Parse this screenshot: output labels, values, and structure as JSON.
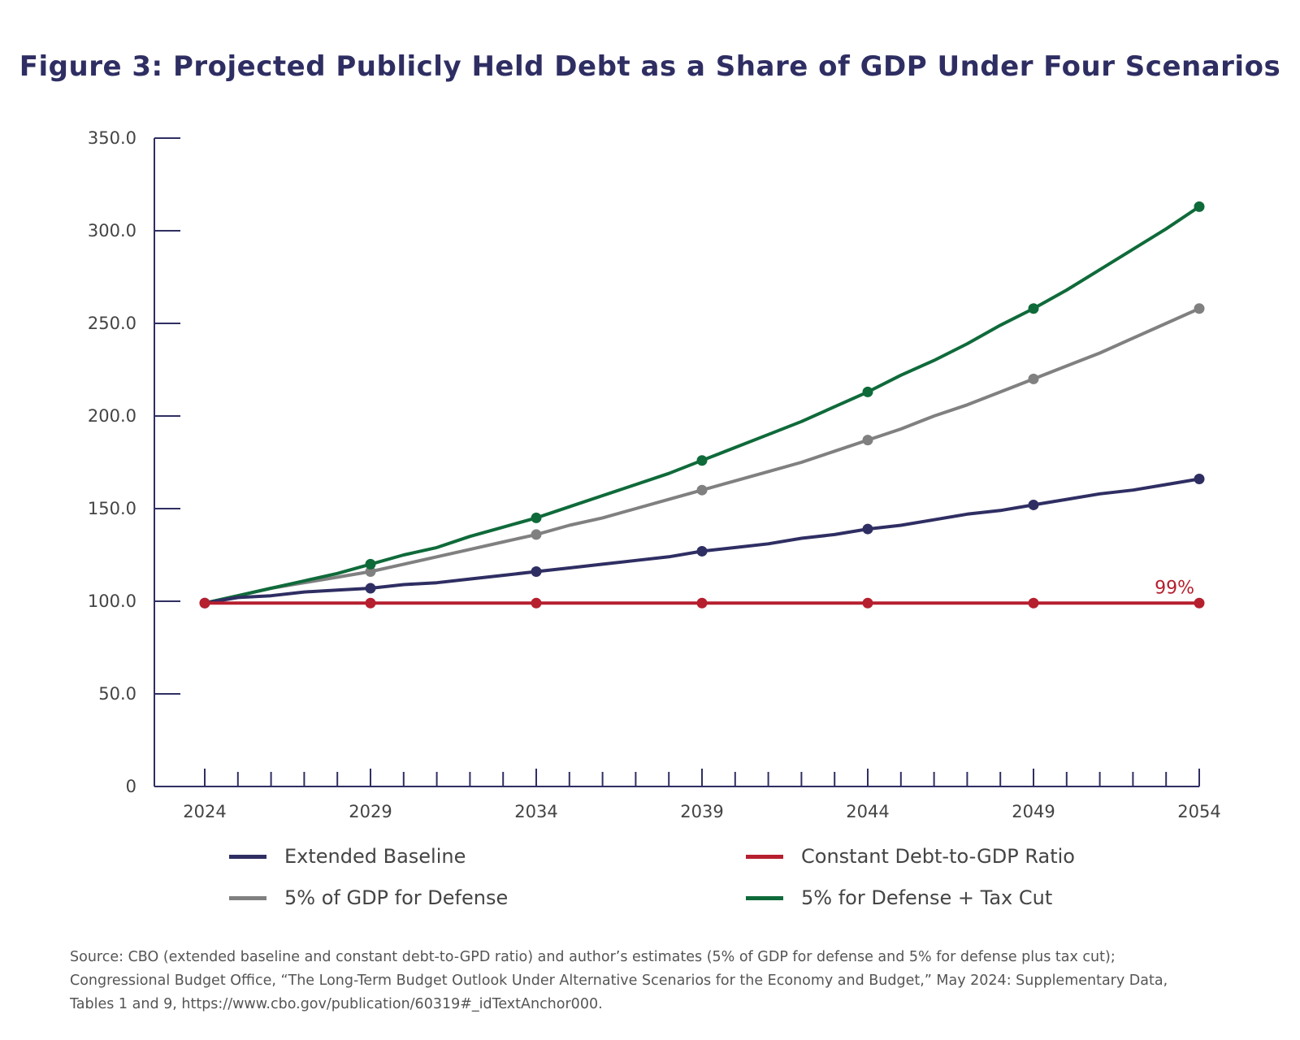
{
  "chart_data": {
    "type": "line",
    "title": "Figure 3: Projected Publicly Held Debt as a Share of GDP Under Four Scenarios",
    "xlabel": "",
    "ylabel": "",
    "x_range": [
      2024,
      2054
    ],
    "ylim": [
      0,
      350
    ],
    "x_tick_labels": [
      "2024",
      "2029",
      "2034",
      "2039",
      "2044",
      "2049",
      "2054"
    ],
    "x_ticks": [
      2024,
      2029,
      2034,
      2039,
      2044,
      2049,
      2054
    ],
    "y_tick_labels": [
      "0",
      "50.0",
      "100.0",
      "150.0",
      "200.0",
      "250.0",
      "300.0",
      "350.0"
    ],
    "y_ticks": [
      0,
      50,
      100,
      150,
      200,
      250,
      300,
      350
    ],
    "grid": false,
    "legend_position": "bottom",
    "series": [
      {
        "name": "Extended Baseline",
        "color": "#2f2e63",
        "x": [
          2024,
          2025,
          2026,
          2027,
          2028,
          2029,
          2030,
          2031,
          2032,
          2033,
          2034,
          2035,
          2036,
          2037,
          2038,
          2039,
          2040,
          2041,
          2042,
          2043,
          2044,
          2045,
          2046,
          2047,
          2048,
          2049,
          2050,
          2051,
          2052,
          2053,
          2054
        ],
        "y": [
          99,
          102,
          103,
          105,
          106,
          107,
          109,
          110,
          112,
          114,
          116,
          118,
          120,
          122,
          124,
          127,
          129,
          131,
          134,
          136,
          139,
          141,
          144,
          147,
          149,
          152,
          155,
          158,
          160,
          163,
          166
        ],
        "markers_at": [
          2024,
          2029,
          2034,
          2039,
          2044,
          2049,
          2054
        ]
      },
      {
        "name": "5% of GDP for Defense",
        "color": "#808080",
        "x": [
          2024,
          2025,
          2026,
          2027,
          2028,
          2029,
          2030,
          2031,
          2032,
          2033,
          2034,
          2035,
          2036,
          2037,
          2038,
          2039,
          2040,
          2041,
          2042,
          2043,
          2044,
          2045,
          2046,
          2047,
          2048,
          2049,
          2050,
          2051,
          2052,
          2053,
          2054
        ],
        "y": [
          99,
          103,
          107,
          110,
          113,
          116,
          120,
          124,
          128,
          132,
          136,
          141,
          145,
          150,
          155,
          160,
          165,
          170,
          175,
          181,
          187,
          193,
          200,
          206,
          213,
          220,
          227,
          234,
          242,
          250,
          258
        ],
        "markers_at": [
          2029,
          2034,
          2039,
          2044,
          2049,
          2054
        ]
      },
      {
        "name": "5% for Defense + Tax Cut",
        "color": "#0f6a3a",
        "x": [
          2024,
          2025,
          2026,
          2027,
          2028,
          2029,
          2030,
          2031,
          2032,
          2033,
          2034,
          2035,
          2036,
          2037,
          2038,
          2039,
          2040,
          2041,
          2042,
          2043,
          2044,
          2045,
          2046,
          2047,
          2048,
          2049,
          2050,
          2051,
          2052,
          2053,
          2054
        ],
        "y": [
          99,
          103,
          107,
          111,
          115,
          120,
          125,
          129,
          135,
          140,
          145,
          151,
          157,
          163,
          169,
          176,
          183,
          190,
          197,
          205,
          213,
          222,
          230,
          239,
          249,
          258,
          268,
          279,
          290,
          301,
          313
        ],
        "markers_at": [
          2029,
          2034,
          2039,
          2044,
          2049,
          2054
        ]
      },
      {
        "name": "Constant Debt-to-GDP Ratio",
        "color": "#b61f2e",
        "x": [
          2024,
          2029,
          2034,
          2039,
          2044,
          2049,
          2054
        ],
        "y": [
          99,
          99,
          99,
          99,
          99,
          99,
          99
        ],
        "markers_at": [
          2024,
          2029,
          2034,
          2039,
          2044,
          2049,
          2054
        ]
      }
    ],
    "annotations": [
      {
        "text": "99%",
        "x": 2054,
        "y": 99,
        "color": "#b61f2e"
      }
    ]
  },
  "legend": [
    {
      "label": "Extended Baseline",
      "color": "#2f2e63"
    },
    {
      "label": "Constant Debt-to-GDP Ratio",
      "color": "#b61f2e"
    },
    {
      "label": "5% of GDP for Defense",
      "color": "#808080"
    },
    {
      "label": "5% for Defense + Tax Cut",
      "color": "#0f6a3a"
    }
  ],
  "source": {
    "line1": "Source: CBO (extended baseline and constant debt-to-GPD ratio) and author’s estimates (5% of GDP for defense and 5% for defense plus tax cut);",
    "line2": "Congressional Budget Office, “The Long-Term Budget Outlook Under Alternative Scenarios for the Economy and Budget,” May 2024: Supplementary Data,",
    "line3": "Tables 1 and 9, https://www.cbo.gov/publication/60319#_idTextAnchor000."
  },
  "colors": {
    "title": "#2f2e63",
    "axis": "#2f2e63",
    "text": "#444444"
  }
}
